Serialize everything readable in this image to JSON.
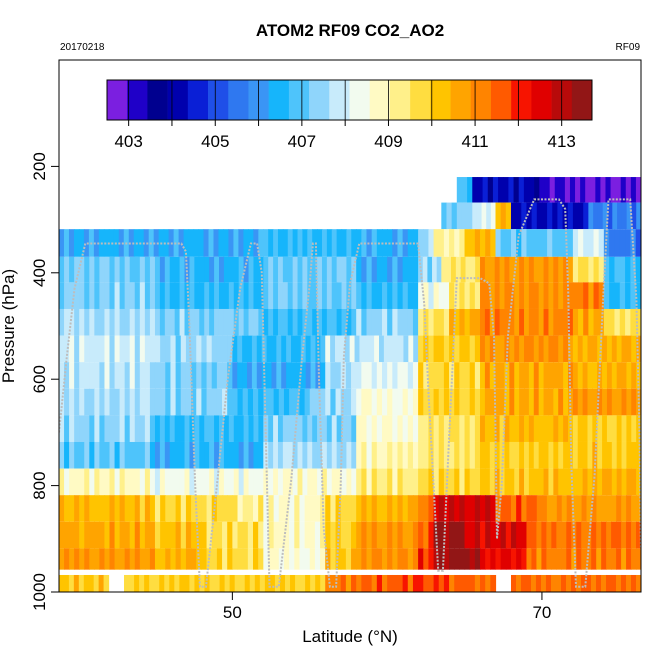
{
  "chart_data": {
    "type": "heatmap",
    "title": "ATOM2 RF09 CO2_AO2",
    "subtitle_left": "20170218",
    "subtitle_right": "RF09",
    "xlabel": "Latitude (°N)",
    "ylabel": "Pressure (hPa)",
    "xlim": [
      38.8,
      76.4
    ],
    "ylim": [
      1000,
      0
    ],
    "x_ticks": [
      "50",
      "70"
    ],
    "x_tick_values": [
      50,
      70
    ],
    "y_ticks": [
      "200",
      "400",
      "600",
      "800",
      "1000"
    ],
    "y_tick_values": [
      200,
      400,
      600,
      800,
      1000
    ],
    "colorbar": {
      "range": [
        402.5,
        413.7
      ],
      "tick_labels": [
        "403",
        "405",
        "407",
        "409",
        "411",
        "413"
      ],
      "tick_values": [
        403,
        405,
        407,
        409,
        411,
        413
      ],
      "colors": [
        "#7b1fe0",
        "#1f00c8",
        "#00008f",
        "#0000ad",
        "#0a1fd6",
        "#1f4fe8",
        "#2f78f0",
        "#3a95f5",
        "#16b5fb",
        "#4ec4fb",
        "#8fd5fb",
        "#c8ebfb",
        "#f2fbef",
        "#fffac4",
        "#fff08a",
        "#ffdd40",
        "#ffc400",
        "#ffa400",
        "#ff8400",
        "#ff5a00",
        "#f71400",
        "#e00000",
        "#b80a0a",
        "#921616"
      ]
    },
    "bands": [
      {
        "p": [
          220,
          268
        ],
        "cells": [
          [
            64.5,
            65.5,
            406.9
          ],
          [
            65.5,
            69.5,
            404.2
          ],
          [
            69.5,
            70.5,
            403.3
          ],
          [
            70.5,
            76.4,
            402.9
          ]
        ]
      },
      {
        "p": [
          268,
          318
        ],
        "cells": [
          [
            63.5,
            65.5,
            407.3
          ],
          [
            65.5,
            67.0,
            408.0
          ],
          [
            67.0,
            68.0,
            410.3
          ],
          [
            68.0,
            73.0,
            404.3
          ],
          [
            73.0,
            76.4,
            405.6
          ]
        ]
      },
      {
        "p": [
          318,
          370
        ],
        "cells": [
          [
            38.8,
            52.0,
            406.4
          ],
          [
            52.0,
            58.0,
            406.6
          ],
          [
            58.0,
            62.0,
            406.5
          ],
          [
            62.0,
            63.0,
            407.5
          ],
          [
            63.0,
            65.0,
            409.0
          ],
          [
            65.0,
            67.0,
            410.3
          ],
          [
            67.0,
            72.0,
            407.0
          ],
          [
            72.0,
            74.0,
            408.0
          ],
          [
            74.0,
            76.4,
            405.6
          ]
        ]
      },
      {
        "p": [
          370,
          418
        ],
        "cells": [
          [
            38.8,
            45.0,
            407.2
          ],
          [
            45.0,
            52.0,
            406.5
          ],
          [
            52.0,
            58.0,
            407.1
          ],
          [
            58.0,
            62.0,
            406.4
          ],
          [
            62.0,
            63.5,
            407.5
          ],
          [
            63.5,
            66.0,
            409.5
          ],
          [
            66.0,
            72.0,
            410.8
          ],
          [
            72.0,
            74.0,
            409.6
          ],
          [
            74.0,
            76.4,
            406.8
          ]
        ]
      },
      {
        "p": [
          418,
          468
        ],
        "cells": [
          [
            38.8,
            45.0,
            407.3
          ],
          [
            45.0,
            52.0,
            406.6
          ],
          [
            52.0,
            58.0,
            407.1
          ],
          [
            58.0,
            62.0,
            406.6
          ],
          [
            62.0,
            64.0,
            408.3
          ],
          [
            64.0,
            66.0,
            409.5
          ],
          [
            66.0,
            72.0,
            411.0
          ],
          [
            72.0,
            74.0,
            411.2
          ],
          [
            74.0,
            76.4,
            406.7
          ]
        ]
      },
      {
        "p": [
          468,
          518
        ],
        "cells": [
          [
            38.8,
            45.0,
            407.6
          ],
          [
            45.0,
            52.0,
            407.3
          ],
          [
            52.0,
            58.0,
            406.8
          ],
          [
            58.0,
            62.0,
            407.4
          ],
          [
            62.0,
            64.0,
            409.5
          ],
          [
            64.0,
            66.0,
            410.5
          ],
          [
            66.0,
            72.0,
            411.1
          ],
          [
            72.0,
            74.0,
            410.6
          ],
          [
            74.0,
            76.4,
            409.6
          ]
        ]
      },
      {
        "p": [
          518,
          568
        ],
        "cells": [
          [
            38.8,
            45.0,
            407.9
          ],
          [
            45.0,
            50.0,
            407.5
          ],
          [
            50.0,
            56.0,
            406.6
          ],
          [
            56.0,
            62.0,
            407.8
          ],
          [
            62.0,
            66.0,
            410.0
          ],
          [
            66.0,
            72.0,
            410.9
          ],
          [
            72.0,
            76.4,
            410.5
          ]
        ]
      },
      {
        "p": [
          568,
          618
        ],
        "cells": [
          [
            38.8,
            45.0,
            407.8
          ],
          [
            45.0,
            50.0,
            407.3
          ],
          [
            50.0,
            56.0,
            406.4
          ],
          [
            56.0,
            58.0,
            407.5
          ],
          [
            58.0,
            62.0,
            408.2
          ],
          [
            62.0,
            66.0,
            409.8
          ],
          [
            66.0,
            72.0,
            410.6
          ],
          [
            72.0,
            76.4,
            410.4
          ]
        ]
      },
      {
        "p": [
          618,
          668
        ],
        "cells": [
          [
            38.8,
            45.0,
            407.6
          ],
          [
            45.0,
            50.0,
            407.4
          ],
          [
            50.0,
            55.0,
            406.8
          ],
          [
            55.0,
            58.0,
            407.4
          ],
          [
            58.0,
            62.0,
            408.6
          ],
          [
            62.0,
            66.0,
            409.9
          ],
          [
            66.0,
            72.0,
            410.6
          ],
          [
            72.0,
            76.4,
            410.8
          ]
        ]
      },
      {
        "p": [
          668,
          718
        ],
        "cells": [
          [
            38.8,
            45.0,
            407.4
          ],
          [
            45.0,
            52.0,
            406.7
          ],
          [
            52.0,
            58.0,
            407.3
          ],
          [
            58.0,
            62.0,
            408.6
          ],
          [
            62.0,
            66.0,
            409.5
          ],
          [
            66.0,
            72.0,
            410.3
          ],
          [
            72.0,
            76.4,
            410.0
          ]
        ]
      },
      {
        "p": [
          718,
          768
        ],
        "cells": [
          [
            38.8,
            45.0,
            407.0
          ],
          [
            45.0,
            52.0,
            406.5
          ],
          [
            52.0,
            58.0,
            407.6
          ],
          [
            58.0,
            62.0,
            408.9
          ],
          [
            62.0,
            66.0,
            409.5
          ],
          [
            66.0,
            72.0,
            410.0
          ],
          [
            72.0,
            76.4,
            410.1
          ]
        ]
      },
      {
        "p": [
          768,
          818
        ],
        "cells": [
          [
            38.8,
            45.0,
            408.8
          ],
          [
            45.0,
            52.0,
            408.4
          ],
          [
            52.0,
            58.0,
            408.7
          ],
          [
            58.0,
            62.0,
            409.3
          ],
          [
            62.0,
            66.0,
            409.8
          ],
          [
            66.0,
            72.0,
            410.2
          ],
          [
            72.0,
            76.4,
            410.5
          ]
        ]
      },
      {
        "p": [
          818,
          868
        ],
        "cells": [
          [
            38.8,
            45.0,
            410.3
          ],
          [
            45.0,
            50.0,
            409.8
          ],
          [
            50.0,
            52.0,
            409.2
          ],
          [
            52.0,
            56.0,
            408.8
          ],
          [
            56.0,
            58.0,
            409.8
          ],
          [
            58.0,
            62.0,
            410.4
          ],
          [
            62.0,
            63.0,
            411.2
          ],
          [
            63.0,
            67.0,
            412.7
          ],
          [
            67.0,
            70.0,
            411.5
          ],
          [
            70.0,
            76.4,
            410.8
          ]
        ]
      },
      {
        "p": [
          868,
          918
        ],
        "cells": [
          [
            38.8,
            45.0,
            410.6
          ],
          [
            45.0,
            48.0,
            410.2
          ],
          [
            48.0,
            52.0,
            409.7
          ],
          [
            52.0,
            56.0,
            408.8
          ],
          [
            56.0,
            58.0,
            410.0
          ],
          [
            58.0,
            62.0,
            410.8
          ],
          [
            62.0,
            63.0,
            411.6
          ],
          [
            63.0,
            65.0,
            413.5
          ],
          [
            65.0,
            69.0,
            412.6
          ],
          [
            69.0,
            76.4,
            411.3
          ]
        ]
      },
      {
        "p": [
          918,
          958
        ],
        "cells": [
          [
            38.8,
            45.0,
            410.8
          ],
          [
            45.0,
            48.0,
            410.4
          ],
          [
            48.0,
            52.0,
            409.8
          ],
          [
            52.0,
            56.0,
            408.6
          ],
          [
            56.0,
            58.0,
            410.2
          ],
          [
            58.0,
            62.0,
            411.0
          ],
          [
            62.0,
            63.0,
            412.0
          ],
          [
            63.0,
            66.0,
            413.4
          ],
          [
            66.0,
            69.0,
            412.4
          ],
          [
            69.0,
            76.4,
            411.2
          ]
        ]
      },
      {
        "p": [
          968,
          1000
        ],
        "cells": [
          [
            38.8,
            42.0,
            410.1
          ],
          [
            43.0,
            56.0,
            409.9
          ],
          [
            56.0,
            58.0,
            411.2
          ],
          [
            58.0,
            62.0,
            411.6
          ],
          [
            62.0,
            64.0,
            411.8
          ],
          [
            64.0,
            67.0,
            411.5
          ],
          [
            68.0,
            76.4,
            411.4
          ]
        ]
      }
    ],
    "flight_track": {
      "lat": [
        38.8,
        39.3,
        39.8,
        40.5,
        41.5,
        42.5,
        43.1,
        43.4,
        44.0,
        44.7,
        45.4,
        46.2,
        46.7,
        47.0,
        47.2,
        47.4,
        47.6,
        47.9,
        48.3,
        49.0,
        49.7,
        50.5,
        51.2,
        51.6,
        51.9,
        52.1,
        52.4,
        53.0,
        53.8,
        54.5,
        55.0,
        55.2,
        55.4,
        55.6,
        55.9,
        56.3,
        56.7,
        57.0,
        57.2,
        57.6,
        58.2,
        58.9,
        59.5,
        60.5,
        61.5,
        62.0,
        62.4,
        62.7,
        63.0,
        63.3,
        63.6,
        64.0,
        64.5,
        65.2,
        66.0,
        66.6,
        66.9,
        67.0,
        67.1,
        67.4,
        67.8,
        68.5,
        69.5,
        70.5,
        71.1,
        71.5,
        71.7,
        71.9,
        72.2,
        72.8,
        73.4,
        74.0,
        74.3,
        74.8,
        75.3,
        75.7,
        76.1,
        76.3,
        76.4
      ],
      "p": [
        700,
        560,
        430,
        345,
        345,
        345,
        345,
        345,
        345,
        345,
        345,
        345,
        345,
        360,
        480,
        640,
        800,
        990,
        990,
        800,
        600,
        430,
        345,
        345,
        400,
        640,
        990,
        990,
        790,
        560,
        420,
        345,
        345,
        600,
        880,
        990,
        990,
        800,
        560,
        420,
        345,
        345,
        345,
        345,
        345,
        345,
        460,
        640,
        800,
        960,
        960,
        710,
        410,
        410,
        410,
        420,
        520,
        700,
        900,
        800,
        520,
        330,
        262,
        262,
        262,
        280,
        440,
        760,
        990,
        990,
        780,
        420,
        262,
        262,
        262,
        262,
        450,
        700,
        920
      ]
    }
  }
}
